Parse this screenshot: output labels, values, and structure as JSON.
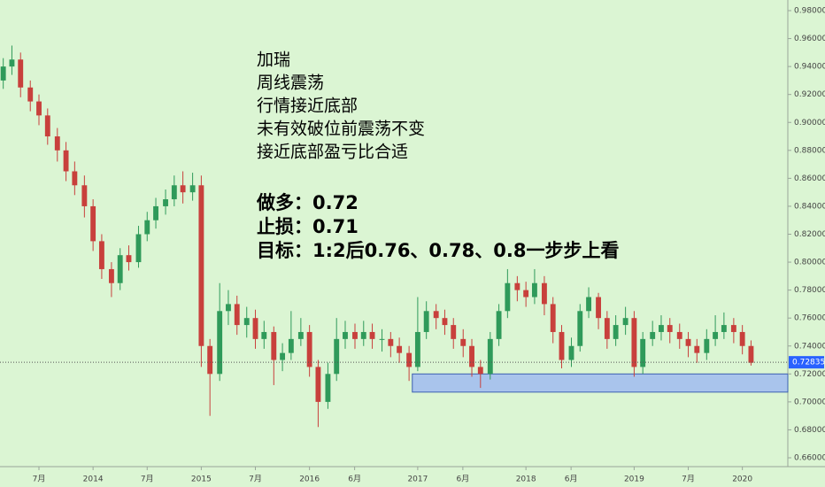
{
  "chart_data": {
    "type": "candlestick",
    "up_color": "#2f9a5a",
    "down_color": "#c8403c",
    "x": [
      2013.17,
      2013.25,
      2013.33,
      2013.42,
      2013.5,
      2013.58,
      2013.67,
      2013.75,
      2013.83,
      2013.92,
      2014,
      2014.08,
      2014.17,
      2014.25,
      2014.33,
      2014.42,
      2014.5,
      2014.58,
      2014.67,
      2014.75,
      2014.83,
      2014.92,
      2015,
      2015.08,
      2015.17,
      2015.25,
      2015.33,
      2015.42,
      2015.5,
      2015.58,
      2015.67,
      2015.75,
      2015.83,
      2015.92,
      2016,
      2016.08,
      2016.17,
      2016.25,
      2016.33,
      2016.42,
      2016.5,
      2016.58,
      2016.67,
      2016.75,
      2016.83,
      2016.92,
      2017,
      2017.08,
      2017.17,
      2017.25,
      2017.33,
      2017.42,
      2017.5,
      2017.58,
      2017.67,
      2017.75,
      2017.83,
      2017.92,
      2018,
      2018.08,
      2018.17,
      2018.25,
      2018.33,
      2018.42,
      2018.5,
      2018.58,
      2018.67,
      2018.75,
      2018.83,
      2018.92,
      2019,
      2019.08,
      2019.17,
      2019.25,
      2019.33,
      2019.42,
      2019.5,
      2019.58,
      2019.67,
      2019.75,
      2019.83,
      2019.92,
      2020,
      2020.08
    ],
    "open": [
      0.93,
      0.94,
      0.945,
      0.925,
      0.915,
      0.905,
      0.89,
      0.88,
      0.865,
      0.855,
      0.84,
      0.815,
      0.795,
      0.785,
      0.805,
      0.8,
      0.82,
      0.83,
      0.84,
      0.845,
      0.855,
      0.85,
      0.855,
      0.74,
      0.72,
      0.765,
      0.77,
      0.755,
      0.76,
      0.745,
      0.75,
      0.73,
      0.735,
      0.745,
      0.75,
      0.725,
      0.7,
      0.72,
      0.745,
      0.75,
      0.745,
      0.75,
      0.745,
      0.745,
      0.74,
      0.735,
      0.725,
      0.75,
      0.765,
      0.76,
      0.755,
      0.745,
      0.74,
      0.725,
      0.72,
      0.745,
      0.765,
      0.785,
      0.78,
      0.775,
      0.785,
      0.77,
      0.75,
      0.73,
      0.74,
      0.765,
      0.775,
      0.76,
      0.745,
      0.755,
      0.76,
      0.725,
      0.745,
      0.75,
      0.755,
      0.75,
      0.745,
      0.74,
      0.735,
      0.745,
      0.75,
      0.755,
      0.75,
      0.74
    ],
    "high": [
      0.946,
      0.955,
      0.95,
      0.93,
      0.92,
      0.91,
      0.896,
      0.886,
      0.872,
      0.862,
      0.845,
      0.82,
      0.8,
      0.81,
      0.812,
      0.826,
      0.836,
      0.846,
      0.852,
      0.862,
      0.865,
      0.864,
      0.862,
      0.745,
      0.785,
      0.78,
      0.776,
      0.768,
      0.766,
      0.758,
      0.754,
      0.742,
      0.765,
      0.76,
      0.755,
      0.73,
      0.728,
      0.76,
      0.758,
      0.756,
      0.758,
      0.756,
      0.752,
      0.75,
      0.746,
      0.74,
      0.775,
      0.772,
      0.77,
      0.766,
      0.76,
      0.752,
      0.745,
      0.73,
      0.75,
      0.77,
      0.795,
      0.79,
      0.786,
      0.795,
      0.79,
      0.775,
      0.755,
      0.746,
      0.77,
      0.782,
      0.778,
      0.765,
      0.762,
      0.768,
      0.765,
      0.75,
      0.758,
      0.762,
      0.76,
      0.756,
      0.75,
      0.745,
      0.752,
      0.762,
      0.764,
      0.76,
      0.755,
      0.744
    ],
    "low": [
      0.924,
      0.934,
      0.918,
      0.908,
      0.898,
      0.884,
      0.872,
      0.858,
      0.848,
      0.832,
      0.808,
      0.788,
      0.775,
      0.78,
      0.794,
      0.796,
      0.815,
      0.824,
      0.834,
      0.84,
      0.842,
      0.844,
      0.725,
      0.69,
      0.715,
      0.755,
      0.748,
      0.746,
      0.738,
      0.738,
      0.712,
      0.722,
      0.73,
      0.74,
      0.718,
      0.682,
      0.695,
      0.715,
      0.738,
      0.738,
      0.74,
      0.738,
      0.736,
      0.732,
      0.728,
      0.715,
      0.722,
      0.745,
      0.752,
      0.748,
      0.738,
      0.732,
      0.718,
      0.71,
      0.716,
      0.74,
      0.76,
      0.772,
      0.768,
      0.77,
      0.762,
      0.742,
      0.724,
      0.725,
      0.736,
      0.76,
      0.752,
      0.738,
      0.74,
      0.748,
      0.718,
      0.72,
      0.74,
      0.744,
      0.742,
      0.738,
      0.732,
      0.728,
      0.73,
      0.74,
      0.745,
      0.742,
      0.734,
      0.726
    ],
    "close": [
      0.94,
      0.945,
      0.925,
      0.915,
      0.905,
      0.89,
      0.88,
      0.865,
      0.855,
      0.84,
      0.815,
      0.795,
      0.785,
      0.805,
      0.8,
      0.82,
      0.83,
      0.84,
      0.845,
      0.855,
      0.85,
      0.855,
      0.74,
      0.72,
      0.765,
      0.77,
      0.755,
      0.76,
      0.745,
      0.75,
      0.73,
      0.735,
      0.745,
      0.75,
      0.725,
      0.7,
      0.72,
      0.745,
      0.75,
      0.745,
      0.75,
      0.745,
      0.745,
      0.74,
      0.735,
      0.725,
      0.75,
      0.765,
      0.76,
      0.755,
      0.745,
      0.74,
      0.725,
      0.72,
      0.745,
      0.765,
      0.785,
      0.78,
      0.775,
      0.785,
      0.77,
      0.75,
      0.73,
      0.74,
      0.765,
      0.775,
      0.76,
      0.745,
      0.755,
      0.76,
      0.725,
      0.745,
      0.75,
      0.755,
      0.75,
      0.745,
      0.74,
      0.735,
      0.745,
      0.75,
      0.755,
      0.75,
      0.74,
      0.728
    ],
    "xlim": [
      2013.14,
      2020.42
    ],
    "ylim": [
      0.66,
      0.98
    ],
    "xticks": [
      {
        "value": 2013.5,
        "label": "7月"
      },
      2014,
      {
        "value": 2014.5,
        "label": "7月"
      },
      2015,
      {
        "value": 2015.5,
        "label": "7月"
      },
      2016,
      {
        "value": 2016.417,
        "label": "6月"
      },
      2017,
      {
        "value": 2017.417,
        "label": "6月"
      },
      2018,
      {
        "value": 2018.417,
        "label": "6月"
      },
      2019,
      {
        "value": 2019.5,
        "label": "7月"
      },
      2020
    ],
    "yticks": [
      {
        "value": 0.66,
        "label": "0.66000"
      },
      {
        "value": 0.68,
        "label": "0.68000"
      },
      {
        "value": 0.7,
        "label": "0.70000"
      },
      {
        "value": 0.72,
        "label": "0.72000"
      },
      {
        "value": 0.74,
        "label": "0.74000"
      },
      {
        "value": 0.76,
        "label": "0.76000"
      },
      {
        "value": 0.78,
        "label": "0.78000"
      },
      {
        "value": 0.8,
        "label": "0.80000"
      },
      {
        "value": 0.82,
        "label": "0.82000"
      },
      {
        "value": 0.84,
        "label": "0.84000"
      },
      {
        "value": 0.86,
        "label": "0.86000"
      },
      {
        "value": 0.88,
        "label": "0.88000"
      },
      {
        "value": 0.9,
        "label": "0.90000"
      },
      {
        "value": 0.92,
        "label": "0.92000"
      },
      {
        "value": 0.94,
        "label": "0.94000"
      },
      {
        "value": 0.96,
        "label": "0.96000"
      },
      {
        "value": 0.98,
        "label": "0.98000"
      }
    ],
    "last_price": {
      "value": 0.72835,
      "label": "0.72835"
    },
    "last_price_color": "#2962ff",
    "zone": {
      "x": [
        2016.95,
        2020.42
      ],
      "y": [
        0.707,
        0.72
      ],
      "color": "#a9c4ec"
    },
    "annotations": {
      "lines": [
        "加瑞",
        "周线震荡",
        "行情接近底部",
        "未有效破位前震荡不变",
        "接近底部盈亏比合适"
      ],
      "trade_lines": [
        "做多：0.72",
        "止损：0.71",
        "目标：1:2后0.76、0.78、0.8一步步上看"
      ]
    }
  }
}
